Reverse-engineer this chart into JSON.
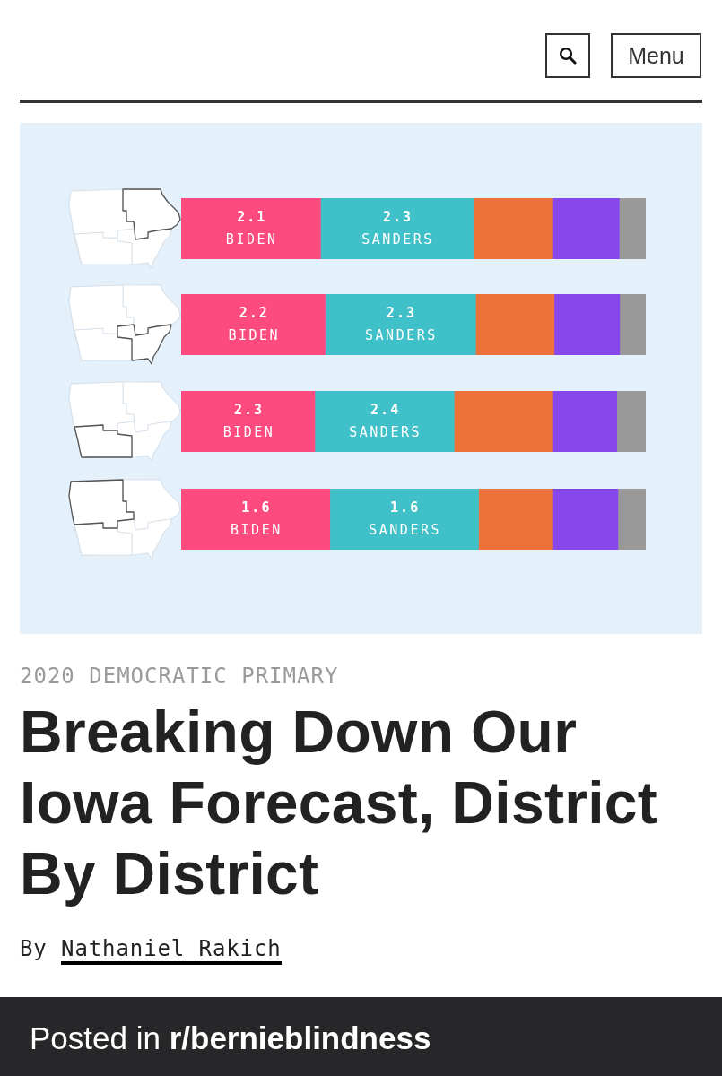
{
  "chart_data": [
    {
      "type": "bar",
      "orientation": "horizontal",
      "stacked": true,
      "categories": [
        null
      ],
      "series": [
        {
          "name": "BIDEN",
          "color": "#fd4b80",
          "values": [
            2.1
          ],
          "value_labels": [
            "2.1"
          ]
        },
        {
          "name": "SANDERS",
          "color": "#40c0c8",
          "values": [
            2.3
          ],
          "value_labels": [
            "2.3"
          ]
        },
        {
          "color": "#ec713b",
          "values": [
            1.2
          ]
        },
        {
          "color": "#8747ea",
          "values": [
            1.0
          ]
        },
        {
          "color": "#999999",
          "values": [
            0.4
          ]
        }
      ],
      "xlim": [
        0,
        7
      ],
      "tick_labels": false
    },
    {
      "type": "bar",
      "orientation": "horizontal",
      "stacked": true,
      "categories": [
        null
      ],
      "series": [
        {
          "name": "BIDEN",
          "color": "#fd4b80",
          "values": [
            2.2
          ],
          "value_labels": [
            "2.2"
          ]
        },
        {
          "name": "SANDERS",
          "color": "#40c0c8",
          "values": [
            2.3
          ],
          "value_labels": [
            "2.3"
          ]
        },
        {
          "color": "#ec713b",
          "values": [
            1.2
          ]
        },
        {
          "color": "#8747ea",
          "values": [
            1.0
          ]
        },
        {
          "color": "#999999",
          "values": [
            0.4
          ]
        }
      ],
      "xlim": [
        0,
        7.1
      ],
      "tick_labels": false
    },
    {
      "type": "bar",
      "orientation": "horizontal",
      "stacked": true,
      "categories": [
        null
      ],
      "series": [
        {
          "name": "BIDEN",
          "color": "#fd4b80",
          "values": [
            2.3
          ],
          "value_labels": [
            "2.3"
          ]
        },
        {
          "name": "SANDERS",
          "color": "#40c0c8",
          "values": [
            2.4
          ],
          "value_labels": [
            "2.4"
          ]
        },
        {
          "color": "#ec713b",
          "values": [
            1.7
          ]
        },
        {
          "color": "#8747ea",
          "values": [
            1.1
          ]
        },
        {
          "color": "#999999",
          "values": [
            0.5
          ]
        }
      ],
      "xlim": [
        0,
        8
      ],
      "tick_labels": false
    },
    {
      "type": "bar",
      "orientation": "horizontal",
      "stacked": true,
      "categories": [
        null
      ],
      "series": [
        {
          "name": "BIDEN",
          "color": "#fd4b80",
          "values": [
            1.6
          ],
          "value_labels": [
            "1.6"
          ]
        },
        {
          "name": "SANDERS",
          "color": "#40c0c8",
          "values": [
            1.6
          ],
          "value_labels": [
            "1.6"
          ]
        },
        {
          "color": "#ec713b",
          "values": [
            0.8
          ]
        },
        {
          "color": "#8747ea",
          "values": [
            0.7
          ]
        },
        {
          "color": "#999999",
          "values": [
            0.3
          ]
        }
      ],
      "xlim": [
        0,
        5
      ],
      "tick_labels": false
    },
    {
      "type": "other",
      "title": "Breaking Down Our Iowa Forecast, District By District",
      "subtitle": "2020 DEMOCRATIC PRIMARY",
      "annotations": [
        "Menu",
        "By Nathaniel Rakich",
        "Posted in r/bernieblindness"
      ]
    }
  ]
}
